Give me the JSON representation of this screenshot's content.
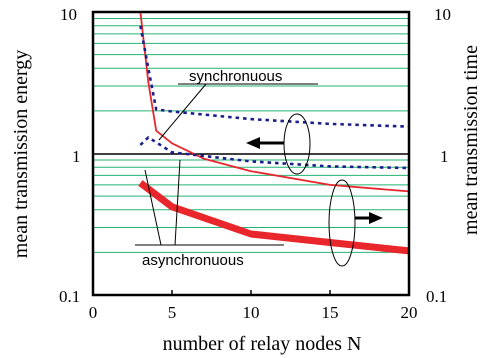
{
  "chart_data": {
    "type": "line",
    "xlabel": "number of relay nodes N",
    "ylabel_left": "mean transmission energy",
    "ylabel_right": "mean transmission time",
    "x_scale": "linear",
    "y_scale": "log",
    "xlim": [
      0,
      20
    ],
    "ylim": [
      0.1,
      10
    ],
    "x_ticks": [
      "0",
      "5",
      "10",
      "15",
      "20"
    ],
    "y_ticks_left": [
      "0.1",
      "1",
      "10"
    ],
    "y_ticks_right": [
      "0.1",
      "1",
      "10"
    ],
    "grid": "horizontal log minor gridlines",
    "series": [
      {
        "axis": "left",
        "style": "thin-solid",
        "color": "#e8262c",
        "x": [
          3,
          3.5,
          4,
          5,
          7,
          10,
          15,
          20
        ],
        "y": [
          10,
          3.2,
          1.45,
          1.18,
          0.92,
          0.75,
          0.6,
          0.54
        ]
      },
      {
        "axis": "left",
        "style": "thick-solid",
        "color": "#e8262c",
        "x": [
          3,
          5,
          10,
          15,
          20
        ],
        "y": [
          0.62,
          0.42,
          0.27,
          0.235,
          0.205
        ]
      },
      {
        "axis": "right",
        "style": "dotted",
        "color": "#1a1f8c",
        "x": [
          3,
          3.5,
          4,
          5,
          10,
          15,
          20
        ],
        "y": [
          8,
          4,
          2.05,
          1.98,
          1.75,
          1.62,
          1.55
        ]
      },
      {
        "axis": "right",
        "style": "dotted",
        "color": "#1a1f8c",
        "x": [
          3,
          3.5,
          5,
          10,
          15,
          20
        ],
        "y": [
          1.15,
          1.3,
          1.02,
          0.88,
          0.81,
          0.79
        ]
      }
    ],
    "annotations": [
      {
        "text": "synchronuous"
      },
      {
        "text": "asynchronuous"
      }
    ],
    "colors": {
      "grid": "#22b573",
      "energy": "#e8262c",
      "time": "#1a1f8c",
      "axis": "#000000"
    }
  }
}
